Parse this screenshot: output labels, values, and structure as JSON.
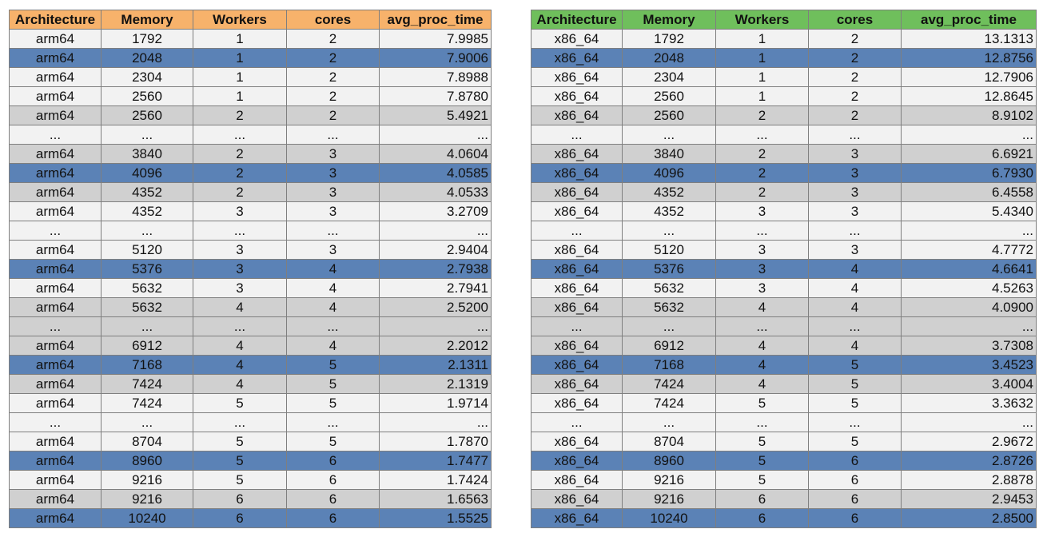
{
  "tables": [
    {
      "headers": [
        "Architecture",
        "Memory",
        "Workers",
        "cores",
        "avg_proc_time"
      ],
      "rows": [
        {
          "style": "white",
          "cells": [
            "arm64",
            "1792",
            "1",
            "2",
            "7.9985"
          ]
        },
        {
          "style": "blue",
          "cells": [
            "arm64",
            "2048",
            "1",
            "2",
            "7.9006"
          ]
        },
        {
          "style": "white",
          "cells": [
            "arm64",
            "2304",
            "1",
            "2",
            "7.8988"
          ]
        },
        {
          "style": "white",
          "cells": [
            "arm64",
            "2560",
            "1",
            "2",
            "7.8780"
          ]
        },
        {
          "style": "gray",
          "cells": [
            "arm64",
            "2560",
            "2",
            "2",
            "5.4921"
          ]
        },
        {
          "style": "white",
          "cells": [
            "...",
            "...",
            "...",
            "...",
            "..."
          ]
        },
        {
          "style": "gray",
          "cells": [
            "arm64",
            "3840",
            "2",
            "3",
            "4.0604"
          ]
        },
        {
          "style": "blue",
          "cells": [
            "arm64",
            "4096",
            "2",
            "3",
            "4.0585"
          ]
        },
        {
          "style": "gray",
          "cells": [
            "arm64",
            "4352",
            "2",
            "3",
            "4.0533"
          ]
        },
        {
          "style": "white",
          "cells": [
            "arm64",
            "4352",
            "3",
            "3",
            "3.2709"
          ]
        },
        {
          "style": "white",
          "cells": [
            "...",
            "...",
            "...",
            "...",
            "..."
          ]
        },
        {
          "style": "white",
          "cells": [
            "arm64",
            "5120",
            "3",
            "3",
            "2.9404"
          ]
        },
        {
          "style": "blue",
          "cells": [
            "arm64",
            "5376",
            "3",
            "4",
            "2.7938"
          ]
        },
        {
          "style": "white",
          "cells": [
            "arm64",
            "5632",
            "3",
            "4",
            "2.7941"
          ]
        },
        {
          "style": "gray",
          "cells": [
            "arm64",
            "5632",
            "4",
            "4",
            "2.5200"
          ]
        },
        {
          "style": "gray",
          "cells": [
            "...",
            "...",
            "...",
            "...",
            "..."
          ]
        },
        {
          "style": "gray",
          "cells": [
            "arm64",
            "6912",
            "4",
            "4",
            "2.2012"
          ]
        },
        {
          "style": "blue",
          "cells": [
            "arm64",
            "7168",
            "4",
            "5",
            "2.1311"
          ]
        },
        {
          "style": "gray",
          "cells": [
            "arm64",
            "7424",
            "4",
            "5",
            "2.1319"
          ]
        },
        {
          "style": "white",
          "cells": [
            "arm64",
            "7424",
            "5",
            "5",
            "1.9714"
          ]
        },
        {
          "style": "white",
          "cells": [
            "...",
            "...",
            "...",
            "...",
            "..."
          ]
        },
        {
          "style": "white",
          "cells": [
            "arm64",
            "8704",
            "5",
            "5",
            "1.7870"
          ]
        },
        {
          "style": "blue",
          "cells": [
            "arm64",
            "8960",
            "5",
            "6",
            "1.7477"
          ]
        },
        {
          "style": "white",
          "cells": [
            "arm64",
            "9216",
            "5",
            "6",
            "1.7424"
          ]
        },
        {
          "style": "gray",
          "cells": [
            "arm64",
            "9216",
            "6",
            "6",
            "1.6563"
          ]
        },
        {
          "style": "blue",
          "cells": [
            "arm64",
            "10240",
            "6",
            "6",
            "1.5525"
          ]
        }
      ]
    },
    {
      "headers": [
        "Architecture",
        "Memory",
        "Workers",
        "cores",
        "avg_proc_time"
      ],
      "rows": [
        {
          "style": "white",
          "cells": [
            "x86_64",
            "1792",
            "1",
            "2",
            "13.1313"
          ]
        },
        {
          "style": "blue",
          "cells": [
            "x86_64",
            "2048",
            "1",
            "2",
            "12.8756"
          ]
        },
        {
          "style": "white",
          "cells": [
            "x86_64",
            "2304",
            "1",
            "2",
            "12.7906"
          ]
        },
        {
          "style": "white",
          "cells": [
            "x86_64",
            "2560",
            "1",
            "2",
            "12.8645"
          ]
        },
        {
          "style": "gray",
          "cells": [
            "x86_64",
            "2560",
            "2",
            "2",
            "8.9102"
          ]
        },
        {
          "style": "white",
          "cells": [
            "...",
            "...",
            "...",
            "...",
            "..."
          ]
        },
        {
          "style": "gray",
          "cells": [
            "x86_64",
            "3840",
            "2",
            "3",
            "6.6921"
          ]
        },
        {
          "style": "blue",
          "cells": [
            "x86_64",
            "4096",
            "2",
            "3",
            "6.7930"
          ]
        },
        {
          "style": "gray",
          "cells": [
            "x86_64",
            "4352",
            "2",
            "3",
            "6.4558"
          ]
        },
        {
          "style": "white",
          "cells": [
            "x86_64",
            "4352",
            "3",
            "3",
            "5.4340"
          ]
        },
        {
          "style": "white",
          "cells": [
            "...",
            "...",
            "...",
            "...",
            "..."
          ]
        },
        {
          "style": "white",
          "cells": [
            "x86_64",
            "5120",
            "3",
            "3",
            "4.7772"
          ]
        },
        {
          "style": "blue",
          "cells": [
            "x86_64",
            "5376",
            "3",
            "4",
            "4.6641"
          ]
        },
        {
          "style": "white",
          "cells": [
            "x86_64",
            "5632",
            "3",
            "4",
            "4.5263"
          ]
        },
        {
          "style": "gray",
          "cells": [
            "x86_64",
            "5632",
            "4",
            "4",
            "4.0900"
          ]
        },
        {
          "style": "gray",
          "cells": [
            "...",
            "...",
            "...",
            "...",
            "..."
          ]
        },
        {
          "style": "gray",
          "cells": [
            "x86_64",
            "6912",
            "4",
            "4",
            "3.7308"
          ]
        },
        {
          "style": "blue",
          "cells": [
            "x86_64",
            "7168",
            "4",
            "5",
            "3.4523"
          ]
        },
        {
          "style": "gray",
          "cells": [
            "x86_64",
            "7424",
            "4",
            "5",
            "3.4004"
          ]
        },
        {
          "style": "white",
          "cells": [
            "x86_64",
            "7424",
            "5",
            "5",
            "3.3632"
          ]
        },
        {
          "style": "white",
          "cells": [
            "...",
            "...",
            "...",
            "...",
            "..."
          ]
        },
        {
          "style": "white",
          "cells": [
            "x86_64",
            "8704",
            "5",
            "5",
            "2.9672"
          ]
        },
        {
          "style": "blue",
          "cells": [
            "x86_64",
            "8960",
            "5",
            "6",
            "2.8726"
          ]
        },
        {
          "style": "white",
          "cells": [
            "x86_64",
            "9216",
            "5",
            "6",
            "2.8878"
          ]
        },
        {
          "style": "gray",
          "cells": [
            "x86_64",
            "9216",
            "6",
            "6",
            "2.9453"
          ]
        },
        {
          "style": "blue",
          "cells": [
            "x86_64",
            "10240",
            "6",
            "6",
            "2.8500"
          ]
        }
      ]
    }
  ],
  "colors": {
    "left_header": "#f7b26b",
    "right_header": "#6fbf5c",
    "row_white": "#f2f2f2",
    "row_gray": "#d0d0d0",
    "row_blue": "#5b82b6",
    "grid": "#7f7f7f"
  }
}
